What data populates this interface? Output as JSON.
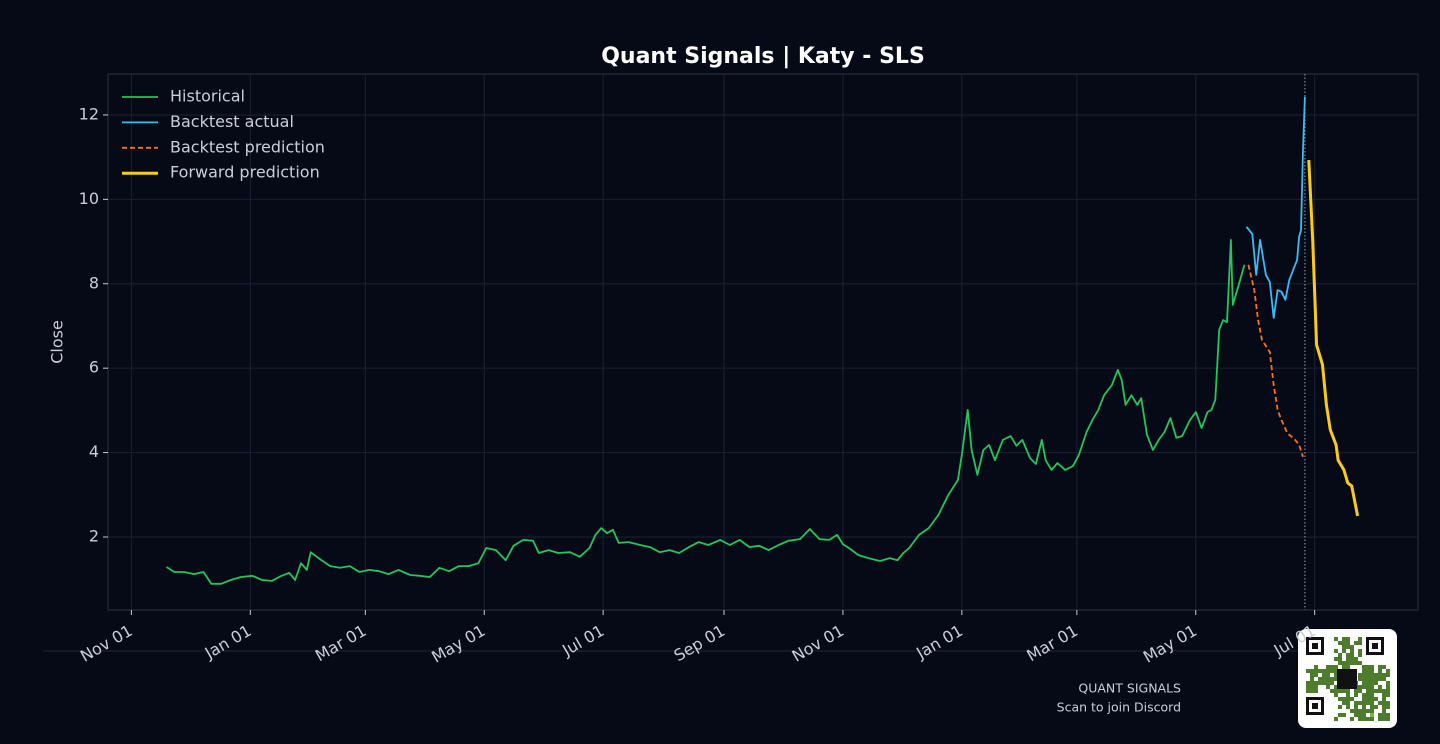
{
  "chart_data": {
    "type": "line",
    "title": "Quant Signals | Katy - SLS",
    "ylabel": "Close",
    "watermark": {
      "title": "QUANT SIGNALS",
      "subtitle": "Scan to join Discord"
    },
    "xlim": [
      -12,
      660
    ],
    "ylim": [
      0.27,
      12.97
    ],
    "yticks": [
      2,
      4,
      6,
      8,
      10,
      12
    ],
    "grid": true,
    "legend": "upper left",
    "xticks": [
      {
        "value": 0,
        "label": "Nov 01"
      },
      {
        "value": 61,
        "label": "Jan 01"
      },
      {
        "value": 120,
        "label": "Mar 01"
      },
      {
        "value": 181,
        "label": "May 01"
      },
      {
        "value": 242,
        "label": "Jul 01"
      },
      {
        "value": 304,
        "label": "Sep 01"
      },
      {
        "value": 365,
        "label": "Nov 01"
      },
      {
        "value": 426,
        "label": "Jan 01"
      },
      {
        "value": 485,
        "label": "Mar 01"
      },
      {
        "value": 546,
        "label": "May 01"
      },
      {
        "value": 607,
        "label": "Jul 01"
      }
    ],
    "series": [
      {
        "name": "Historical",
        "color": "#22c55e",
        "linestyle": "solid",
        "linewidth": 1.8,
        "x": [
          18,
          22,
          27,
          32,
          37,
          41,
          46,
          51,
          56,
          62,
          67,
          72,
          77,
          81,
          84,
          87,
          90,
          92,
          96,
          102,
          107,
          112,
          117,
          122,
          127,
          132,
          137,
          143,
          148,
          153,
          158,
          163,
          168,
          173,
          178,
          182,
          187,
          192,
          196,
          201,
          206,
          209,
          214,
          219,
          225,
          230,
          235,
          238,
          241,
          244,
          247,
          250,
          255,
          261,
          266,
          271,
          276,
          281,
          286,
          291,
          296,
          302,
          307,
          312,
          317,
          322,
          327,
          332,
          337,
          343,
          348,
          353,
          358,
          362,
          365,
          368,
          373,
          378,
          384,
          389,
          393,
          396,
          399,
          404,
          409,
          414,
          419,
          424,
          426,
          429,
          431,
          434,
          437,
          440,
          443,
          447,
          451,
          454,
          457,
          461,
          464,
          467,
          469,
          472,
          475,
          479,
          483,
          486,
          490,
          493,
          496,
          499,
          503,
          506,
          508,
          510,
          513,
          516,
          518,
          521,
          524,
          527,
          530,
          533,
          536,
          539,
          543,
          546,
          549,
          552,
          554,
          556,
          558,
          560,
          562,
          564,
          565,
          568,
          571
        ],
        "values": [
          1.29,
          1.17,
          1.17,
          1.12,
          1.17,
          0.89,
          0.89,
          0.98,
          1.05,
          1.08,
          0.98,
          0.96,
          1.08,
          1.15,
          0.98,
          1.38,
          1.22,
          1.64,
          1.5,
          1.31,
          1.27,
          1.31,
          1.17,
          1.22,
          1.19,
          1.12,
          1.22,
          1.1,
          1.08,
          1.05,
          1.27,
          1.19,
          1.31,
          1.31,
          1.38,
          1.74,
          1.69,
          1.45,
          1.79,
          1.93,
          1.91,
          1.62,
          1.69,
          1.62,
          1.64,
          1.53,
          1.74,
          2.05,
          2.21,
          2.09,
          2.17,
          1.86,
          1.88,
          1.81,
          1.76,
          1.64,
          1.69,
          1.62,
          1.76,
          1.88,
          1.81,
          1.93,
          1.81,
          1.93,
          1.76,
          1.79,
          1.69,
          1.81,
          1.91,
          1.95,
          2.19,
          1.95,
          1.93,
          2.05,
          1.83,
          1.74,
          1.57,
          1.5,
          1.43,
          1.5,
          1.45,
          1.62,
          1.74,
          2.05,
          2.21,
          2.52,
          2.99,
          3.35,
          3.94,
          5.01,
          4.06,
          3.47,
          4.06,
          4.18,
          3.82,
          4.3,
          4.39,
          4.16,
          4.3,
          3.87,
          3.73,
          4.3,
          3.82,
          3.59,
          3.75,
          3.59,
          3.68,
          3.94,
          4.49,
          4.77,
          5.01,
          5.36,
          5.6,
          5.96,
          5.72,
          5.13,
          5.36,
          5.13,
          5.29,
          4.42,
          4.06,
          4.3,
          4.49,
          4.82,
          4.35,
          4.39,
          4.77,
          4.96,
          4.58,
          4.96,
          5.01,
          5.25,
          6.91,
          7.14,
          7.09,
          9.04,
          7.5,
          7.97,
          8.45
        ]
      },
      {
        "name": "Backtest actual",
        "color": "#38bdf8",
        "linestyle": "solid",
        "linewidth": 1.8,
        "x": [
          572,
          575,
          577,
          579,
          582,
          584,
          586,
          588,
          590,
          592,
          594,
          596,
          598,
          599,
          600,
          601,
          602
        ],
        "values": [
          9.35,
          9.18,
          8.21,
          9.04,
          8.21,
          8.04,
          7.19,
          7.85,
          7.81,
          7.62,
          8.09,
          8.33,
          8.56,
          9.11,
          9.27,
          11.17,
          12.43
        ]
      },
      {
        "name": "Backtest prediction",
        "color": "#f97316",
        "linestyle": "dashed",
        "linewidth": 1.8,
        "x": [
          573,
          576,
          578,
          580,
          584,
          586,
          588,
          590,
          593,
          597,
          599,
          601
        ],
        "values": [
          8.45,
          7.85,
          7.14,
          6.67,
          6.38,
          5.6,
          5.01,
          4.77,
          4.46,
          4.3,
          4.18,
          3.9
        ]
      },
      {
        "name": "Forward prediction",
        "color": "#facc15",
        "linestyle": "solid",
        "linewidth": 3,
        "x": [
          604,
          606,
          608,
          611,
          613,
          615,
          618,
          619,
          622,
          624,
          626,
          629
        ],
        "values": [
          10.93,
          9.04,
          6.55,
          6.08,
          5.13,
          4.54,
          4.18,
          3.82,
          3.59,
          3.28,
          3.21,
          2.5
        ]
      }
    ]
  }
}
